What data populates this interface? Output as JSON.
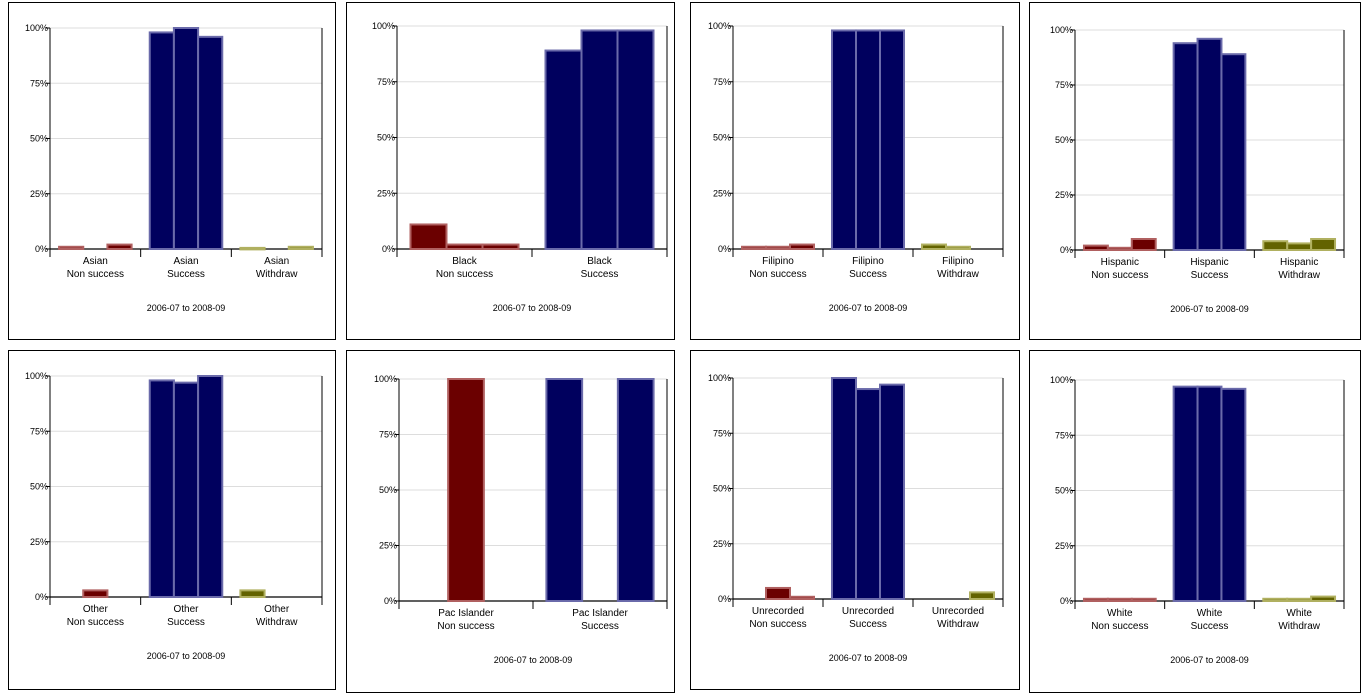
{
  "colors": {
    "non_success_dark": "#6b0000",
    "non_success_light": "#b06060",
    "success": "#00005e",
    "success_border": "#6a6aaa",
    "withdraw_dark": "#636300",
    "withdraw_light": "#b0b060",
    "gridline": "#dddddd"
  },
  "chart_data": [
    {
      "type": "bar",
      "xlabel": "2006-07 to 2008-09",
      "ylim": [
        0,
        100
      ],
      "yticks": [
        "0%",
        "25%",
        "50%",
        "75%",
        "100%"
      ],
      "grid": true,
      "groups": [
        {
          "name": "Asian",
          "label": [
            "Asian",
            "Non success"
          ],
          "values": [
            1,
            0,
            2
          ],
          "color": "non_success"
        },
        {
          "name": "Asian",
          "label": [
            "Asian",
            "Success"
          ],
          "values": [
            98,
            100,
            96
          ],
          "color": "success"
        },
        {
          "name": "Asian",
          "label": [
            "Asian",
            "Withdraw"
          ],
          "values": [
            0.5,
            0,
            1
          ],
          "color": "withdraw"
        }
      ]
    },
    {
      "type": "bar",
      "xlabel": "2006-07 to 2008-09",
      "ylim": [
        0,
        100
      ],
      "yticks": [
        "0%",
        "25%",
        "50%",
        "75%",
        "100%"
      ],
      "grid": true,
      "groups": [
        {
          "name": "Black",
          "label": [
            "Black",
            "Non success"
          ],
          "values": [
            11,
            2,
            2
          ],
          "color": "non_success"
        },
        {
          "name": "Black",
          "label": [
            "Black",
            "Success"
          ],
          "values": [
            89,
            98,
            98
          ],
          "color": "success"
        }
      ]
    },
    {
      "type": "bar",
      "xlabel": "2006-07 to 2008-09",
      "ylim": [
        0,
        100
      ],
      "yticks": [
        "0%",
        "25%",
        "50%",
        "75%",
        "100%"
      ],
      "grid": true,
      "groups": [
        {
          "name": "Filipino",
          "label": [
            "Filipino",
            "Non success"
          ],
          "values": [
            1,
            1,
            2
          ],
          "color": "non_success"
        },
        {
          "name": "Filipino",
          "label": [
            "Filipino",
            "Success"
          ],
          "values": [
            98,
            98,
            98
          ],
          "color": "success"
        },
        {
          "name": "Filipino",
          "label": [
            "Filipino",
            "Withdraw"
          ],
          "values": [
            2,
            1,
            0
          ],
          "color": "withdraw"
        }
      ]
    },
    {
      "type": "bar",
      "xlabel": "2006-07 to 2008-09",
      "ylim": [
        0,
        100
      ],
      "yticks": [
        "0%",
        "25%",
        "50%",
        "75%",
        "100%"
      ],
      "grid": true,
      "groups": [
        {
          "name": "Hispanic",
          "label": [
            "Hispanic",
            "Non success"
          ],
          "values": [
            2,
            1,
            5
          ],
          "color": "non_success"
        },
        {
          "name": "Hispanic",
          "label": [
            "Hispanic",
            "Success"
          ],
          "values": [
            94,
            96,
            89
          ],
          "color": "success"
        },
        {
          "name": "Hispanic",
          "label": [
            "Hispanic",
            "Withdraw"
          ],
          "values": [
            4,
            3,
            5
          ],
          "color": "withdraw"
        }
      ]
    },
    {
      "type": "bar",
      "xlabel": "2006-07 to 2008-09",
      "ylim": [
        0,
        100
      ],
      "yticks": [
        "0%",
        "25%",
        "50%",
        "75%",
        "100%"
      ],
      "grid": true,
      "groups": [
        {
          "name": "Other",
          "label": [
            "Other",
            "Non success"
          ],
          "values": [
            0,
            3,
            0
          ],
          "color": "non_success"
        },
        {
          "name": "Other",
          "label": [
            "Other",
            "Success"
          ],
          "values": [
            98,
            97,
            100
          ],
          "color": "success"
        },
        {
          "name": "Other",
          "label": [
            "Other",
            "Withdraw"
          ],
          "values": [
            3,
            0,
            0
          ],
          "color": "withdraw"
        }
      ]
    },
    {
      "type": "bar",
      "xlabel": "2006-07 to 2008-09",
      "ylim": [
        0,
        100
      ],
      "yticks": [
        "0%",
        "25%",
        "50%",
        "75%",
        "100%"
      ],
      "grid": true,
      "groups": [
        {
          "name": "Pac Islander",
          "label": [
            "Pac Islander",
            "Non success"
          ],
          "values": [
            0,
            100,
            0
          ],
          "color": "non_success"
        },
        {
          "name": "Pac Islander",
          "label": [
            "Pac Islander",
            "Success"
          ],
          "values": [
            100,
            0,
            100
          ],
          "color": "success"
        }
      ]
    },
    {
      "type": "bar",
      "xlabel": "2006-07 to 2008-09",
      "ylim": [
        0,
        100
      ],
      "yticks": [
        "0%",
        "25%",
        "50%",
        "75%",
        "100%"
      ],
      "grid": true,
      "groups": [
        {
          "name": "Unrecorded",
          "label": [
            "Unrecorded",
            "Non success"
          ],
          "values": [
            0,
            5,
            1
          ],
          "color": "non_success"
        },
        {
          "name": "Unrecorded",
          "label": [
            "Unrecorded",
            "Success"
          ],
          "values": [
            100,
            95,
            97
          ],
          "color": "success"
        },
        {
          "name": "Unrecorded",
          "label": [
            "Unrecorded",
            "Withdraw"
          ],
          "values": [
            0,
            0,
            3
          ],
          "color": "withdraw"
        }
      ]
    },
    {
      "type": "bar",
      "xlabel": "2006-07 to 2008-09",
      "ylim": [
        0,
        100
      ],
      "yticks": [
        "0%",
        "25%",
        "50%",
        "75%",
        "100%"
      ],
      "grid": true,
      "groups": [
        {
          "name": "White",
          "label": [
            "White",
            "Non success"
          ],
          "values": [
            1,
            1,
            1
          ],
          "color": "non_success"
        },
        {
          "name": "White",
          "label": [
            "White",
            "Success"
          ],
          "values": [
            97,
            97,
            96
          ],
          "color": "success"
        },
        {
          "name": "White",
          "label": [
            "White",
            "Withdraw"
          ],
          "values": [
            1,
            1,
            2
          ],
          "color": "withdraw"
        }
      ]
    }
  ]
}
